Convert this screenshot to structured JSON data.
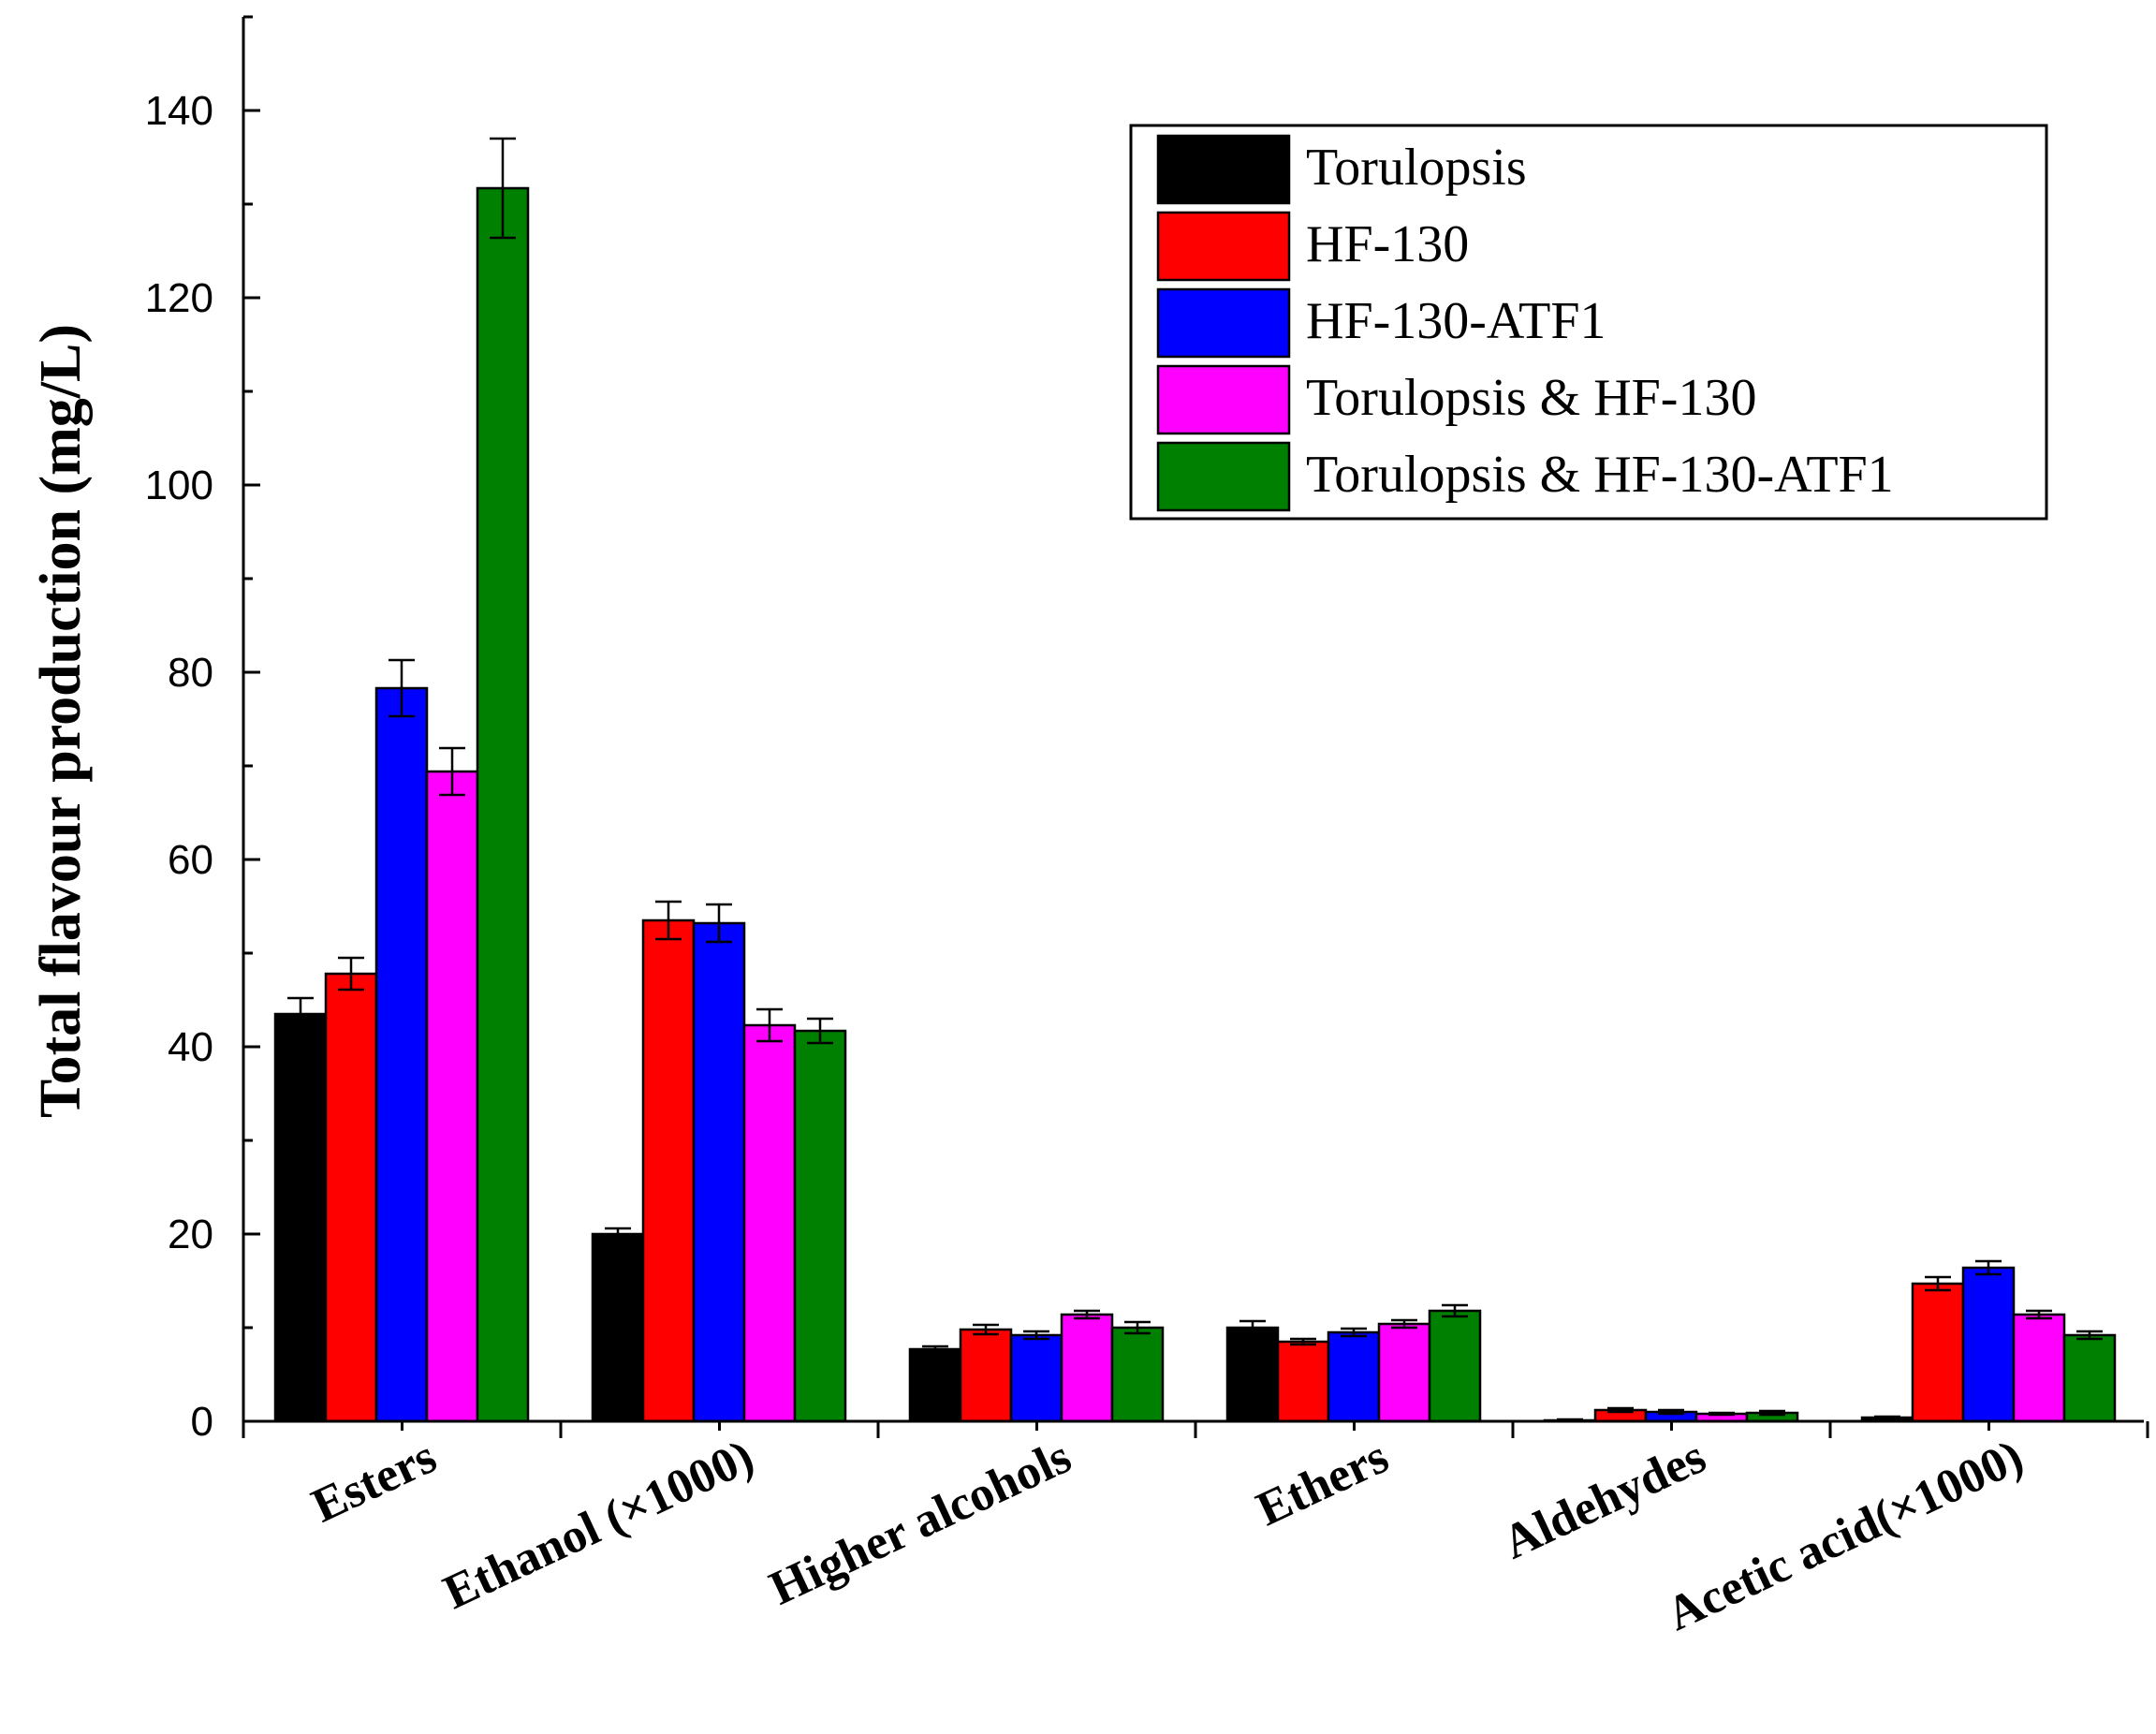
{
  "chart_data": {
    "type": "bar",
    "title": "",
    "xlabel": "",
    "ylabel": "Total flavour production (mg/L)",
    "ylim": [
      0,
      150
    ],
    "yticks": [
      0,
      20,
      40,
      60,
      80,
      100,
      120,
      140
    ],
    "categories": [
      "Esters",
      "Ethanol (×1000)",
      "Higher alcohols",
      "Ethers",
      "Aldehydes",
      "Acetic acid(×1000)"
    ],
    "legend_position": "top-right",
    "series": [
      {
        "name": "Torulopsis",
        "color": "#000000",
        "values": [
          43.5,
          20.0,
          7.7,
          10.0,
          0.1,
          0.4
        ],
        "errors": [
          1.7,
          0.6,
          0.3,
          0.7,
          0.1,
          0.1
        ]
      },
      {
        "name": "HF-130",
        "color": "#ff0000",
        "values": [
          47.8,
          53.5,
          9.8,
          8.5,
          1.2,
          14.7
        ],
        "errors": [
          1.7,
          2.0,
          0.5,
          0.3,
          0.2,
          0.7
        ]
      },
      {
        "name": "HF-130-ATF1",
        "color": "#0000ff",
        "values": [
          78.3,
          53.2,
          9.2,
          9.5,
          1.0,
          16.4
        ],
        "errors": [
          3.0,
          2.0,
          0.4,
          0.4,
          0.2,
          0.7
        ]
      },
      {
        "name": "Torulopsis & HF-130",
        "color": "#ff00ff",
        "values": [
          69.4,
          42.3,
          11.4,
          10.4,
          0.8,
          11.4
        ],
        "errors": [
          2.5,
          1.7,
          0.4,
          0.4,
          0.1,
          0.4
        ]
      },
      {
        "name": "Torulopsis & HF-130-ATF1",
        "color": "#008000",
        "values": [
          131.7,
          41.7,
          10.0,
          11.8,
          0.9,
          9.2
        ],
        "errors": [
          5.3,
          1.3,
          0.6,
          0.6,
          0.2,
          0.4
        ]
      }
    ]
  }
}
